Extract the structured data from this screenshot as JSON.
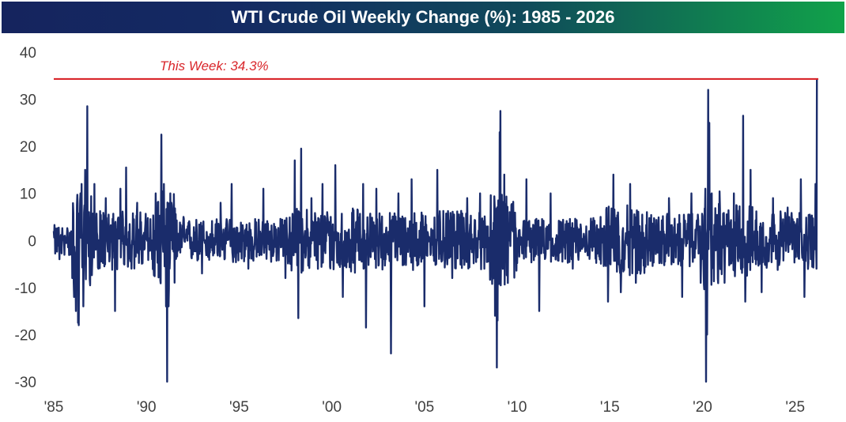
{
  "chart_data": {
    "type": "line",
    "title": "WTI Crude Oil Weekly Change (%): 1985 - 2026",
    "xlabel": "",
    "ylabel": "",
    "x_range": [
      1985,
      2026.25
    ],
    "ylim": [
      -30,
      40
    ],
    "y_ticks": [
      40,
      30,
      20,
      10,
      0,
      -10,
      -20,
      -30
    ],
    "x_ticks": [
      {
        "year": 1985,
        "label": "'85"
      },
      {
        "year": 1990,
        "label": "'90"
      },
      {
        "year": 1995,
        "label": "'95"
      },
      {
        "year": 2000,
        "label": "'00"
      },
      {
        "year": 2005,
        "label": "'05"
      },
      {
        "year": 2010,
        "label": "'10"
      },
      {
        "year": 2015,
        "label": "'15"
      },
      {
        "year": 2020,
        "label": "'20"
      },
      {
        "year": 2025,
        "label": "'25"
      }
    ],
    "grid": false,
    "series": [
      {
        "color": "#1a2c6b",
        "note_points": [
          [
            1985.0,
            2
          ],
          [
            1985.3,
            -4
          ],
          [
            1985.6,
            1
          ],
          [
            1985.9,
            -3
          ],
          [
            1986.0,
            -8
          ],
          [
            1986.1,
            -12
          ],
          [
            1986.2,
            -15
          ],
          [
            1986.3,
            -17.5
          ],
          [
            1986.35,
            -18
          ],
          [
            1986.45,
            10
          ],
          [
            1986.5,
            12
          ],
          [
            1986.6,
            -14
          ],
          [
            1986.7,
            15
          ],
          [
            1986.8,
            28.5
          ],
          [
            1986.9,
            6
          ],
          [
            1987.0,
            -2
          ],
          [
            1987.2,
            12
          ],
          [
            1987.4,
            -6
          ],
          [
            1987.8,
            9
          ],
          [
            1988.3,
            -15
          ],
          [
            1988.6,
            11
          ],
          [
            1988.9,
            15.5
          ],
          [
            1989.2,
            -6
          ],
          [
            1989.5,
            8
          ],
          [
            1990.3,
            -4
          ],
          [
            1990.5,
            10
          ],
          [
            1990.8,
            22.5
          ],
          [
            1990.95,
            12
          ],
          [
            1991.05,
            -14
          ],
          [
            1991.12,
            -30
          ],
          [
            1991.2,
            -14
          ],
          [
            1991.35,
            8
          ],
          [
            1992,
            5
          ],
          [
            1993,
            -7
          ],
          [
            1994,
            8
          ],
          [
            1994.6,
            12
          ],
          [
            1995.5,
            -6
          ],
          [
            1996.3,
            11
          ],
          [
            1997.5,
            -8
          ],
          [
            1998.0,
            17
          ],
          [
            1998.2,
            -16.5
          ],
          [
            1998.35,
            19.5
          ],
          [
            1998.9,
            9
          ],
          [
            1999.5,
            12
          ],
          [
            2000.2,
            16
          ],
          [
            2000.6,
            -12
          ],
          [
            2001.7,
            12
          ],
          [
            2001.85,
            -18.5
          ],
          [
            2002.4,
            11
          ],
          [
            2003.2,
            -24
          ],
          [
            2003.6,
            10
          ],
          [
            2004.3,
            13
          ],
          [
            2005.0,
            -14
          ],
          [
            2005.7,
            15
          ],
          [
            2006.5,
            -8
          ],
          [
            2007.3,
            9
          ],
          [
            2008.0,
            10
          ],
          [
            2008.8,
            -16
          ],
          [
            2008.9,
            -27
          ],
          [
            2008.95,
            -17
          ],
          [
            2009.05,
            23
          ],
          [
            2009.1,
            27.5
          ],
          [
            2009.3,
            14
          ],
          [
            2009.6,
            6
          ],
          [
            2010.5,
            13
          ],
          [
            2011.2,
            -15
          ],
          [
            2011.8,
            10
          ],
          [
            2013,
            -6
          ],
          [
            2014.5,
            5
          ],
          [
            2014.9,
            -13
          ],
          [
            2015.2,
            14
          ],
          [
            2015.6,
            -11
          ],
          [
            2016.1,
            12
          ],
          [
            2016.4,
            -9
          ],
          [
            2017,
            6
          ],
          [
            2018.2,
            9
          ],
          [
            2018.9,
            -12
          ],
          [
            2019.4,
            10
          ],
          [
            2019.9,
            -9
          ],
          [
            2020.15,
            11
          ],
          [
            2020.2,
            -30
          ],
          [
            2020.25,
            -20
          ],
          [
            2020.3,
            32
          ],
          [
            2020.37,
            25
          ],
          [
            2020.5,
            10
          ],
          [
            2021.2,
            -9
          ],
          [
            2021.7,
            10
          ],
          [
            2022.2,
            26.5
          ],
          [
            2022.3,
            -13
          ],
          [
            2022.6,
            15
          ],
          [
            2023.2,
            -11
          ],
          [
            2023.8,
            9
          ],
          [
            2024.6,
            7
          ],
          [
            2025.3,
            13
          ],
          [
            2025.5,
            -12
          ],
          [
            2025.8,
            5
          ],
          [
            2026.0,
            -3
          ],
          [
            2026.1,
            12
          ],
          [
            2026.18,
            34.3
          ]
        ]
      }
    ],
    "reference_line": {
      "value": 34.3,
      "color": "#d9262b"
    },
    "annotations": [
      {
        "text": "This Week: 34.3%",
        "color": "#d9262b"
      }
    ]
  }
}
